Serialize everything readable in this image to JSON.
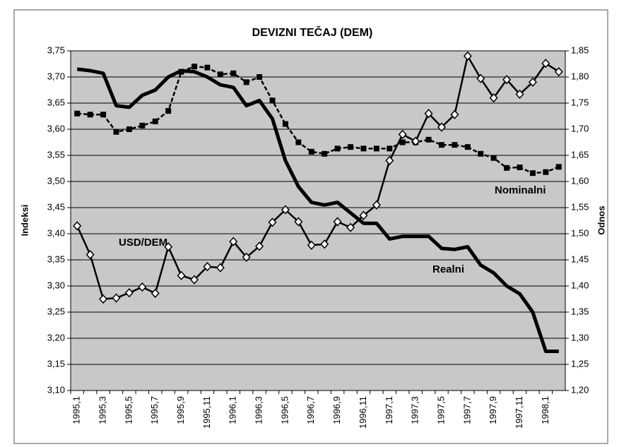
{
  "chart_data": {
    "type": "line",
    "title": "DEVIZNI TEČAJ (DEM)",
    "ylabel": "Indeksi",
    "y2label": "Odnos",
    "categories": [
      "1995,1",
      null,
      "1995,3",
      null,
      "1995,5",
      null,
      "1995,7",
      null,
      "1995,9",
      null,
      "1995,11",
      null,
      "1996,1",
      null,
      "1996,3",
      null,
      "1996,5",
      null,
      "1996,7",
      null,
      "1996,9",
      null,
      "1996,11",
      null,
      "1997,1",
      null,
      "1997,3",
      null,
      "1997,5",
      null,
      "1997,7",
      null,
      "1997,9",
      null,
      "1997,11",
      null,
      "1998,1",
      null
    ],
    "series": [
      {
        "name": "Realni",
        "color": "#000000",
        "line_style": "solid",
        "marker": "none",
        "values": [
          3.715,
          3.712,
          3.707,
          3.645,
          3.642,
          3.665,
          3.675,
          3.7,
          3.712,
          3.71,
          3.7,
          3.685,
          3.68,
          3.645,
          3.655,
          3.62,
          3.54,
          3.49,
          3.46,
          3.455,
          3.46,
          3.44,
          3.42,
          3.42,
          3.39,
          3.395,
          3.395,
          3.395,
          3.372,
          3.37,
          3.375,
          3.34,
          3.325,
          3.3,
          3.285,
          3.25,
          3.175,
          3.175
        ]
      },
      {
        "name": "Nominalni",
        "color": "#000000",
        "line_style": "dashed",
        "marker": "square",
        "values": [
          3.63,
          3.628,
          3.628,
          3.595,
          3.6,
          3.607,
          3.615,
          3.635,
          3.71,
          3.72,
          3.718,
          3.705,
          3.707,
          3.69,
          3.7,
          3.655,
          3.61,
          3.575,
          3.557,
          3.553,
          3.563,
          3.566,
          3.563,
          3.563,
          3.563,
          3.575,
          3.575,
          3.58,
          3.57,
          3.57,
          3.566,
          3.553,
          3.545,
          3.526,
          3.527,
          3.516,
          3.518,
          3.528
        ]
      },
      {
        "name": "USD/DEM",
        "color": "#000000",
        "line_style": "solid",
        "marker": "diamond",
        "axis": "y2",
        "values": [
          1.515,
          1.46,
          1.375,
          1.377,
          1.387,
          1.398,
          1.386,
          1.475,
          1.42,
          1.412,
          1.437,
          1.435,
          1.485,
          1.455,
          1.476,
          1.522,
          1.546,
          1.523,
          1.478,
          1.48,
          1.523,
          1.512,
          1.535,
          1.555,
          1.64,
          1.69,
          1.677,
          1.73,
          1.704,
          1.728,
          1.84,
          1.797,
          1.76,
          1.795,
          1.767,
          1.79,
          1.826,
          1.81
        ]
      }
    ],
    "ylim": [
      3.1,
      3.75
    ],
    "yticks": [
      {
        "value": 3.1,
        "label": "3,10"
      },
      {
        "value": 3.15,
        "label": "3,15"
      },
      {
        "value": 3.2,
        "label": "3,20"
      },
      {
        "value": 3.25,
        "label": "3,25"
      },
      {
        "value": 3.3,
        "label": "3,30"
      },
      {
        "value": 3.35,
        "label": "3,35"
      },
      {
        "value": 3.4,
        "label": "3,40"
      },
      {
        "value": 3.45,
        "label": "3,45"
      },
      {
        "value": 3.5,
        "label": "3,50"
      },
      {
        "value": 3.55,
        "label": "3,55"
      },
      {
        "value": 3.6,
        "label": "3,60"
      },
      {
        "value": 3.65,
        "label": "3,65"
      },
      {
        "value": 3.7,
        "label": "3,70"
      },
      {
        "value": 3.75,
        "label": "3,75"
      }
    ],
    "y2lim": [
      1.2,
      1.85
    ],
    "y2ticks": [
      {
        "value": 1.2,
        "label": "1,20"
      },
      {
        "value": 1.25,
        "label": "1,25"
      },
      {
        "value": 1.3,
        "label": "1,30"
      },
      {
        "value": 1.35,
        "label": "1,35"
      },
      {
        "value": 1.4,
        "label": "1,40"
      },
      {
        "value": 1.45,
        "label": "1,45"
      },
      {
        "value": 1.5,
        "label": "1,50"
      },
      {
        "value": 1.55,
        "label": "1,55"
      },
      {
        "value": 1.6,
        "label": "1,60"
      },
      {
        "value": 1.65,
        "label": "1,65"
      },
      {
        "value": 1.7,
        "label": "1,70"
      },
      {
        "value": 1.75,
        "label": "1,75"
      },
      {
        "value": 1.8,
        "label": "1,80"
      },
      {
        "value": 1.85,
        "label": "1,85"
      }
    ],
    "grid": true
  }
}
